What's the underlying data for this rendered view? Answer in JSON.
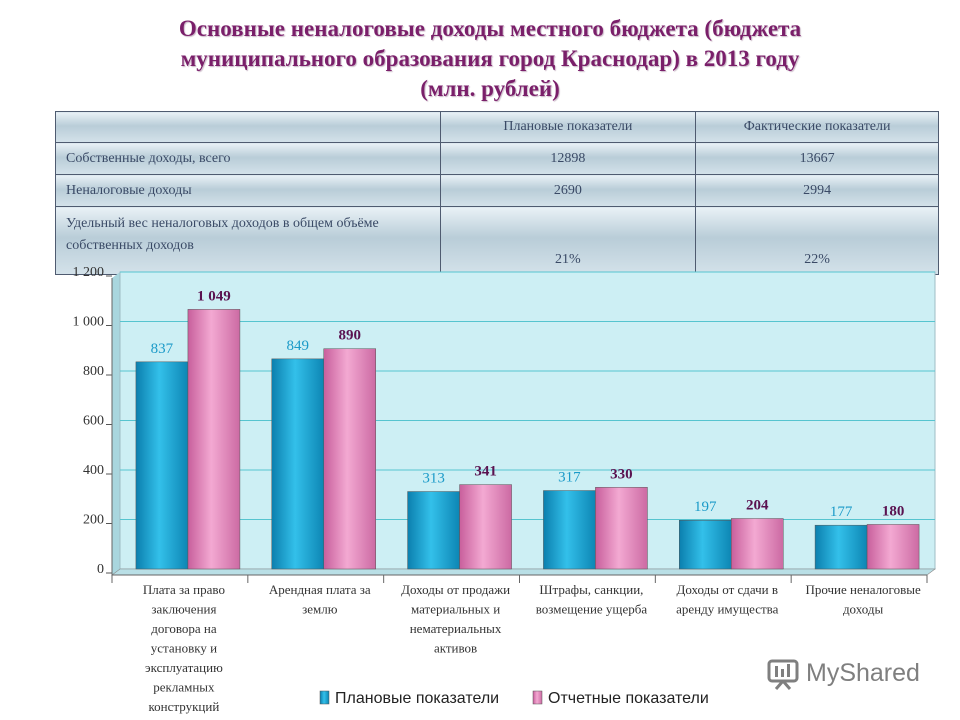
{
  "title_lines": [
    "Основные неналоговые доходы местного бюджета (бюджета",
    "муниципального образования город Краснодар) в 2013 году",
    "(млн. рублей)"
  ],
  "summary_table": {
    "headers": [
      "",
      "Плановые показатели",
      "Фактические показатели"
    ],
    "rows": [
      [
        "Собственные доходы, всего",
        "12898",
        "13667"
      ],
      [
        "Неналоговые доходы",
        "2690",
        "2994"
      ],
      [
        "Удельный вес неналоговых доходов в общем объёме собственных доходов",
        "21%",
        "22%"
      ]
    ]
  },
  "chart_data": {
    "type": "bar",
    "categories": [
      "Плата за право заключения договора на установку и эксплуатацию рекламных конструкций",
      "Арендная плата за землю",
      "Доходы от продажи материальных и нематериальных активов",
      "Штрафы, санкции, возмещение ущерба",
      "Доходы от сдачи в аренду имущества",
      "Прочие неналоговые доходы"
    ],
    "category_lines": [
      [
        "Плата за право",
        "заключения",
        "договора на",
        "установку и",
        "эксплуатацию",
        "рекламных",
        "конструкций"
      ],
      [
        "Арендная плата за",
        "землю"
      ],
      [
        "Доходы от продажи",
        "материальных и",
        "нематериальных",
        "активов"
      ],
      [
        "Штрафы, санкции,",
        "возмещение ущерба"
      ],
      [
        "Доходы от сдачи в",
        "аренду имущества"
      ],
      [
        "Прочие неналоговые",
        "доходы"
      ]
    ],
    "series": [
      {
        "name": "Плановые показатели",
        "values": [
          837,
          849,
          313,
          317,
          197,
          177
        ],
        "labels": [
          "837",
          "849",
          "313",
          "317",
          "197",
          "177"
        ],
        "color": "#1ea6d6"
      },
      {
        "name": "Отчетные показатели",
        "values": [
          1049,
          890,
          341,
          330,
          204,
          180
        ],
        "labels": [
          "1 049",
          "890",
          "341",
          "330",
          "204",
          "180"
        ],
        "color": "#e98fc0"
      }
    ],
    "ylim": [
      0,
      1200
    ],
    "yticks": [
      0,
      200,
      400,
      600,
      800,
      1000,
      1200
    ],
    "ytick_labels": [
      "0",
      "200",
      "400",
      "600",
      "800",
      "1 000",
      "1 200"
    ],
    "grid": true,
    "legend_position": "bottom",
    "plot_background": "#cdeff4"
  },
  "watermark": "MyShared"
}
